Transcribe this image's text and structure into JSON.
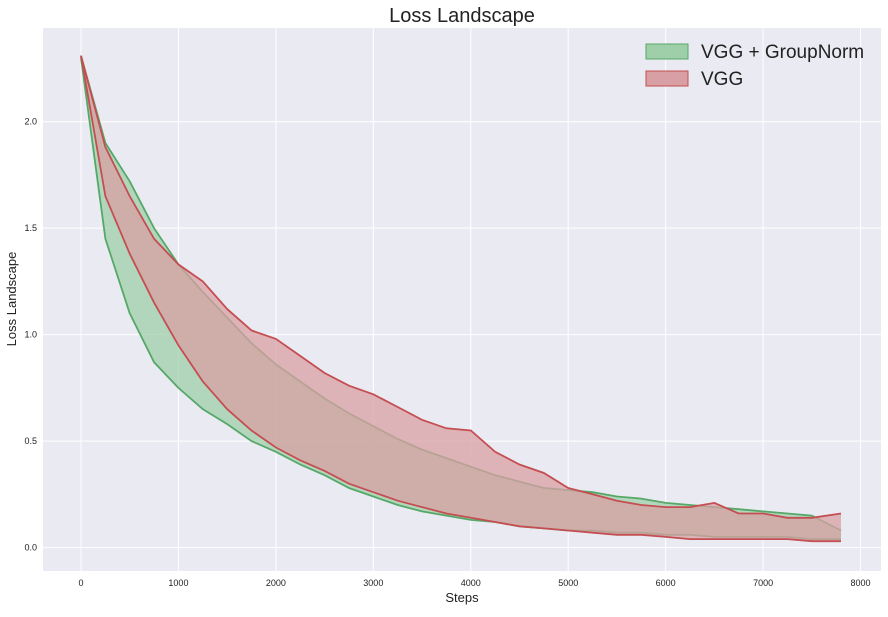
{
  "chart_data": {
    "type": "area",
    "title": "Loss Landscape",
    "xlabel": "Steps",
    "ylabel": "Loss Landscape",
    "xlim": [
      -390,
      8210
    ],
    "ylim": [
      -0.11,
      2.44
    ],
    "x_ticks": [
      0,
      1000,
      2000,
      3000,
      4000,
      5000,
      6000,
      7000,
      8000
    ],
    "y_ticks": [
      0.0,
      0.5,
      1.0,
      1.5,
      2.0
    ],
    "x_tick_labels": [
      "0",
      "1000",
      "2000",
      "3000",
      "4000",
      "5000",
      "6000",
      "7000",
      "8000"
    ],
    "y_tick_labels": [
      "0.0",
      "0.5",
      "1.0",
      "1.5",
      "2.0"
    ],
    "grid": true,
    "legend_position": "top-right",
    "x": [
      0,
      250,
      500,
      750,
      1000,
      1250,
      1500,
      1750,
      2000,
      2250,
      2500,
      2750,
      3000,
      3250,
      3500,
      3750,
      4000,
      4250,
      4500,
      4750,
      5000,
      5250,
      5500,
      5750,
      6000,
      6250,
      6500,
      6750,
      7000,
      7250,
      7500,
      7800
    ],
    "series": [
      {
        "name": "VGG + GroupNorm",
        "color": "#55a868",
        "fill": "#9fcfa8",
        "upper": [
          2.31,
          1.9,
          1.72,
          1.5,
          1.33,
          1.2,
          1.08,
          0.96,
          0.86,
          0.78,
          0.7,
          0.63,
          0.57,
          0.51,
          0.46,
          0.42,
          0.38,
          0.34,
          0.31,
          0.28,
          0.27,
          0.26,
          0.24,
          0.23,
          0.21,
          0.2,
          0.19,
          0.18,
          0.17,
          0.16,
          0.15,
          0.08
        ],
        "lower": [
          2.3,
          1.45,
          1.1,
          0.87,
          0.75,
          0.65,
          0.58,
          0.5,
          0.45,
          0.39,
          0.34,
          0.28,
          0.24,
          0.2,
          0.17,
          0.15,
          0.13,
          0.12,
          0.1,
          0.09,
          0.08,
          0.08,
          0.07,
          0.07,
          0.06,
          0.06,
          0.05,
          0.05,
          0.05,
          0.05,
          0.04,
          0.04
        ]
      },
      {
        "name": "VGG",
        "color": "#c44e52",
        "fill": "#d8a0a4",
        "upper": [
          2.31,
          1.88,
          1.65,
          1.45,
          1.33,
          1.25,
          1.12,
          1.02,
          0.98,
          0.9,
          0.82,
          0.76,
          0.72,
          0.66,
          0.6,
          0.56,
          0.55,
          0.45,
          0.39,
          0.35,
          0.28,
          0.25,
          0.22,
          0.2,
          0.19,
          0.19,
          0.21,
          0.16,
          0.16,
          0.14,
          0.14,
          0.16
        ],
        "lower": [
          2.31,
          1.65,
          1.38,
          1.15,
          0.95,
          0.78,
          0.65,
          0.55,
          0.47,
          0.41,
          0.36,
          0.3,
          0.26,
          0.22,
          0.19,
          0.16,
          0.14,
          0.12,
          0.1,
          0.09,
          0.08,
          0.07,
          0.06,
          0.06,
          0.05,
          0.04,
          0.04,
          0.04,
          0.04,
          0.04,
          0.03,
          0.03
        ]
      }
    ]
  }
}
